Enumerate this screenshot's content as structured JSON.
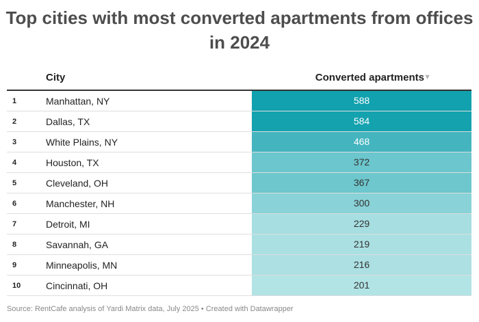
{
  "title": "Top cities with most converted apartments from offices in 2024",
  "columns": {
    "city": "City",
    "value": "Converted apartments",
    "sort_icon": "sort-down-triangle"
  },
  "chart_data": {
    "type": "table",
    "title": "Top cities with most converted apartments from offices in 2024",
    "columns": [
      "",
      "City",
      "Converted apartments"
    ],
    "rows": [
      {
        "rank": "1",
        "city": "Manhattan, NY",
        "value": 588
      },
      {
        "rank": "2",
        "city": "Dallas, TX",
        "value": 584
      },
      {
        "rank": "3",
        "city": "White Plains, NY",
        "value": 468
      },
      {
        "rank": "4",
        "city": "Houston, TX",
        "value": 372
      },
      {
        "rank": "5",
        "city": "Cleveland, OH",
        "value": 367
      },
      {
        "rank": "6",
        "city": "Manchester, NH",
        "value": 300
      },
      {
        "rank": "7",
        "city": "Detroit, MI",
        "value": 229
      },
      {
        "rank": "8",
        "city": "Savannah, GA",
        "value": 219
      },
      {
        "rank": "9",
        "city": "Minneapolis, MN",
        "value": 216
      },
      {
        "rank": "10",
        "city": "Cincinnati, OH",
        "value": 201
      }
    ],
    "color_scale": {
      "low": "#b2e3e5",
      "high": "#12a1ae"
    }
  },
  "footer": "Source: RentCafe analysis of Yardi Matrix data, July 2025 • Created with Datawrapper"
}
